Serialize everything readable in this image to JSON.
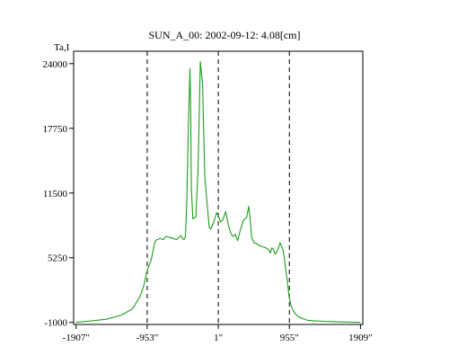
{
  "chart_data": {
    "type": "line",
    "title": "SUN_A_00: 2002-09-12: 4.08[cm]",
    "ylabel": "Ta,I",
    "xlabel": "",
    "ylim": [
      -1200,
      25200
    ],
    "xlim": [
      -1940,
      1940
    ],
    "y_ticks": [
      {
        "value": 24000,
        "label": "24000"
      },
      {
        "value": 17750,
        "label": "17750"
      },
      {
        "value": 11500,
        "label": "11500"
      },
      {
        "value": 5250,
        "label": "5250"
      },
      {
        "value": -1000,
        "label": "-1000"
      }
    ],
    "x_ticks": [
      {
        "value": -1907,
        "label": "-1907\""
      },
      {
        "value": -953,
        "label": "-953\""
      },
      {
        "value": 1,
        "label": "1\""
      },
      {
        "value": 955,
        "label": "955\""
      },
      {
        "value": 1909,
        "label": "1909\""
      }
    ],
    "reference_lines_x": [
      -953,
      1,
      955
    ],
    "grid": false,
    "series_color": "#1a9e1a",
    "series": [
      {
        "x": [
          -1907,
          -1700,
          -1500,
          -1300,
          -1150,
          -1050,
          -1000,
          -960,
          -940,
          -900,
          -880,
          -850,
          -820,
          -780,
          -740,
          -700,
          -640,
          -560,
          -500,
          -480,
          -460,
          -440,
          -420,
          -400,
          -380,
          -370,
          -360,
          -340,
          -300,
          -270,
          -240,
          -210,
          -200,
          -180,
          -150,
          -120,
          -100,
          -60,
          -20,
          1,
          30,
          60,
          100,
          140,
          170,
          200,
          230,
          260,
          300,
          340,
          380,
          410,
          430,
          450,
          480,
          520,
          560,
          600,
          640,
          680,
          700,
          720,
          740,
          760,
          780,
          800,
          830,
          870,
          900,
          930,
          950,
          970,
          1000,
          1050,
          1100,
          1200,
          1400,
          1600,
          1800,
          1909
        ],
        "values": [
          -1000,
          -850,
          -700,
          -300,
          300,
          1500,
          2500,
          3800,
          4300,
          5000,
          5700,
          6800,
          7000,
          7100,
          7000,
          7300,
          7200,
          7000,
          7400,
          7100,
          7000,
          7300,
          11000,
          18000,
          23500,
          20000,
          12000,
          9000,
          9200,
          14000,
          24200,
          22000,
          19000,
          13000,
          10500,
          8200,
          8000,
          8700,
          9600,
          9300,
          8700,
          8900,
          9700,
          8300,
          7600,
          7300,
          7500,
          6900,
          8000,
          8900,
          9100,
          10200,
          8800,
          7200,
          6700,
          6600,
          6400,
          6300,
          6200,
          6000,
          5700,
          6200,
          6100,
          5600,
          5700,
          6000,
          6700,
          6000,
          4500,
          2800,
          1600,
          800,
          200,
          -300,
          -550,
          -800,
          -900,
          -950,
          -980,
          -1000
        ]
      }
    ]
  }
}
